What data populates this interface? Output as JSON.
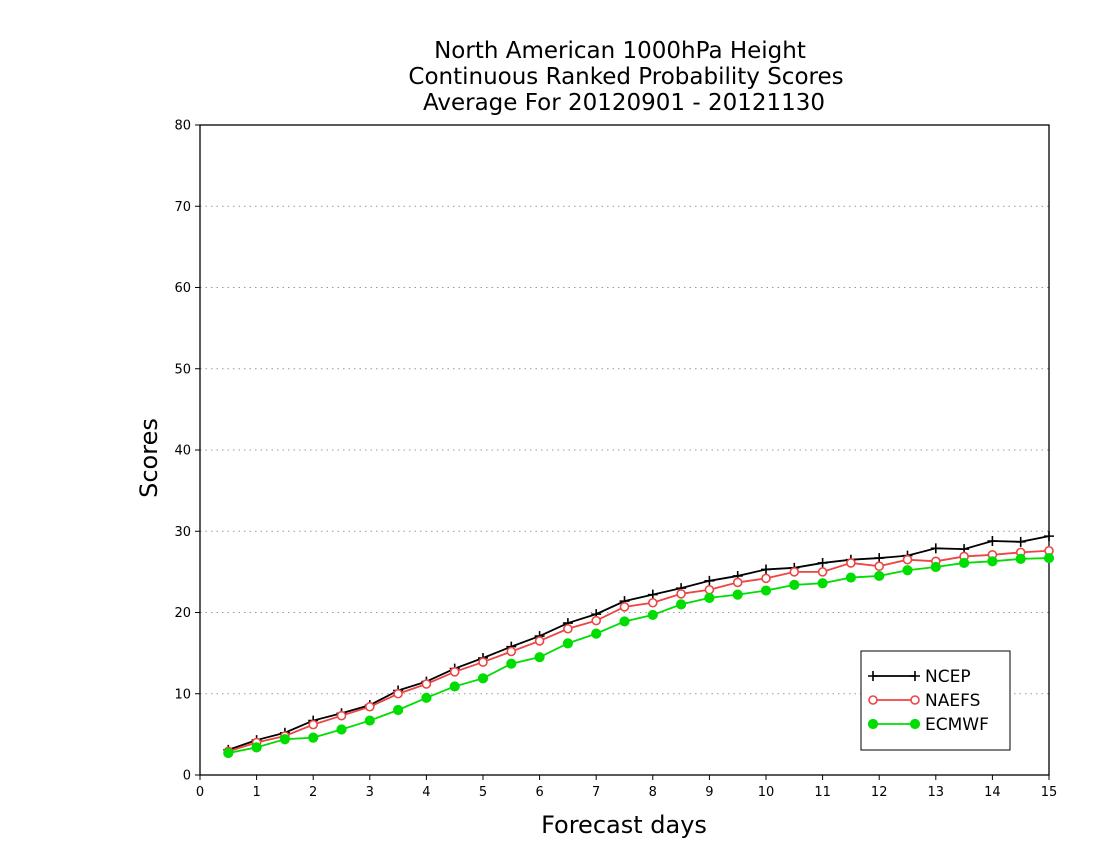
{
  "chart_data": {
    "type": "line",
    "title_lines": [
      "North American 1000hPa Height",
      "Continuous Ranked Probability Scores",
      "Average For 20120901 - 20121130"
    ],
    "xlabel": "Forecast days",
    "ylabel": "Scores",
    "xlim": [
      0,
      15
    ],
    "ylim": [
      0,
      80
    ],
    "xticks": [
      "0",
      "1",
      "2",
      "3",
      "4",
      "5",
      "6",
      "7",
      "8",
      "9",
      "10",
      "11",
      "12",
      "13",
      "14",
      "15"
    ],
    "yticks": [
      "0",
      "10",
      "20",
      "30",
      "40",
      "50",
      "60",
      "70",
      "80"
    ],
    "grid": "horizontal dotted",
    "legend_position": "bottom-right",
    "x": [
      0.5,
      1,
      1.5,
      2,
      2.5,
      3,
      3.5,
      4,
      4.5,
      5,
      5.5,
      6,
      6.5,
      7,
      7.5,
      8,
      8.5,
      9,
      9.5,
      10,
      10.5,
      11,
      11.5,
      12,
      12.5,
      13,
      13.5,
      14,
      14.5,
      15
    ],
    "series": [
      {
        "name": "NCEP",
        "color": "#000000",
        "marker": "plus",
        "values": [
          3.1,
          4.3,
          5.2,
          6.7,
          7.6,
          8.6,
          10.4,
          11.5,
          13.1,
          14.4,
          15.8,
          17.1,
          18.7,
          19.8,
          21.4,
          22.2,
          23.0,
          23.9,
          24.5,
          25.3,
          25.5,
          26.1,
          26.5,
          26.7,
          27.0,
          27.9,
          27.8,
          28.8,
          28.7,
          29.4
        ]
      },
      {
        "name": "NAEFS",
        "color": "#ee4444",
        "marker": "open-circle",
        "values": [
          2.9,
          4.0,
          4.8,
          6.2,
          7.3,
          8.4,
          10.0,
          11.2,
          12.7,
          13.9,
          15.2,
          16.5,
          18.0,
          19.0,
          20.7,
          21.2,
          22.3,
          22.8,
          23.7,
          24.2,
          25.0,
          25.0,
          26.1,
          25.7,
          26.5,
          26.3,
          26.9,
          27.1,
          27.4,
          27.6
        ]
      },
      {
        "name": "ECMWF",
        "color": "#00dd00",
        "marker": "filled-circle",
        "values": [
          2.7,
          3.4,
          4.4,
          4.6,
          5.6,
          6.7,
          8.0,
          9.5,
          10.9,
          11.9,
          13.7,
          14.5,
          16.2,
          17.4,
          18.9,
          19.7,
          21.0,
          21.8,
          22.2,
          22.7,
          23.4,
          23.6,
          24.3,
          24.5,
          25.2,
          25.6,
          26.1,
          26.3,
          26.6,
          26.7
        ]
      }
    ]
  }
}
